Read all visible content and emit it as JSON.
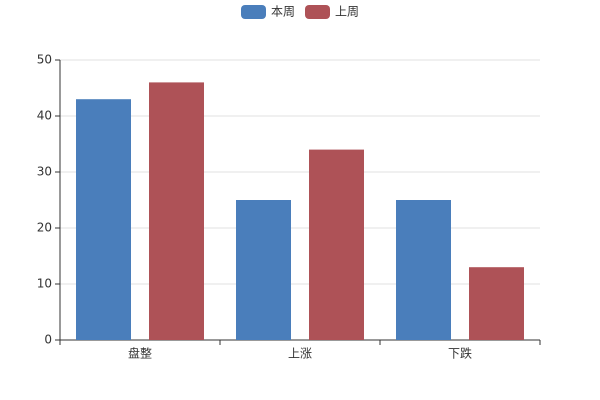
{
  "chart_data": {
    "type": "bar",
    "categories": [
      "盘整",
      "上涨",
      "下跌"
    ],
    "series": [
      {
        "name": "本周",
        "color": "#4a7ebb",
        "values": [
          43,
          25,
          25
        ]
      },
      {
        "name": "上周",
        "color": "#ae5257",
        "values": [
          46,
          34,
          13
        ]
      }
    ],
    "ylim": [
      0,
      50
    ],
    "yticks": [
      0,
      10,
      20,
      30,
      40,
      50
    ],
    "grid": true,
    "legend": "top"
  }
}
